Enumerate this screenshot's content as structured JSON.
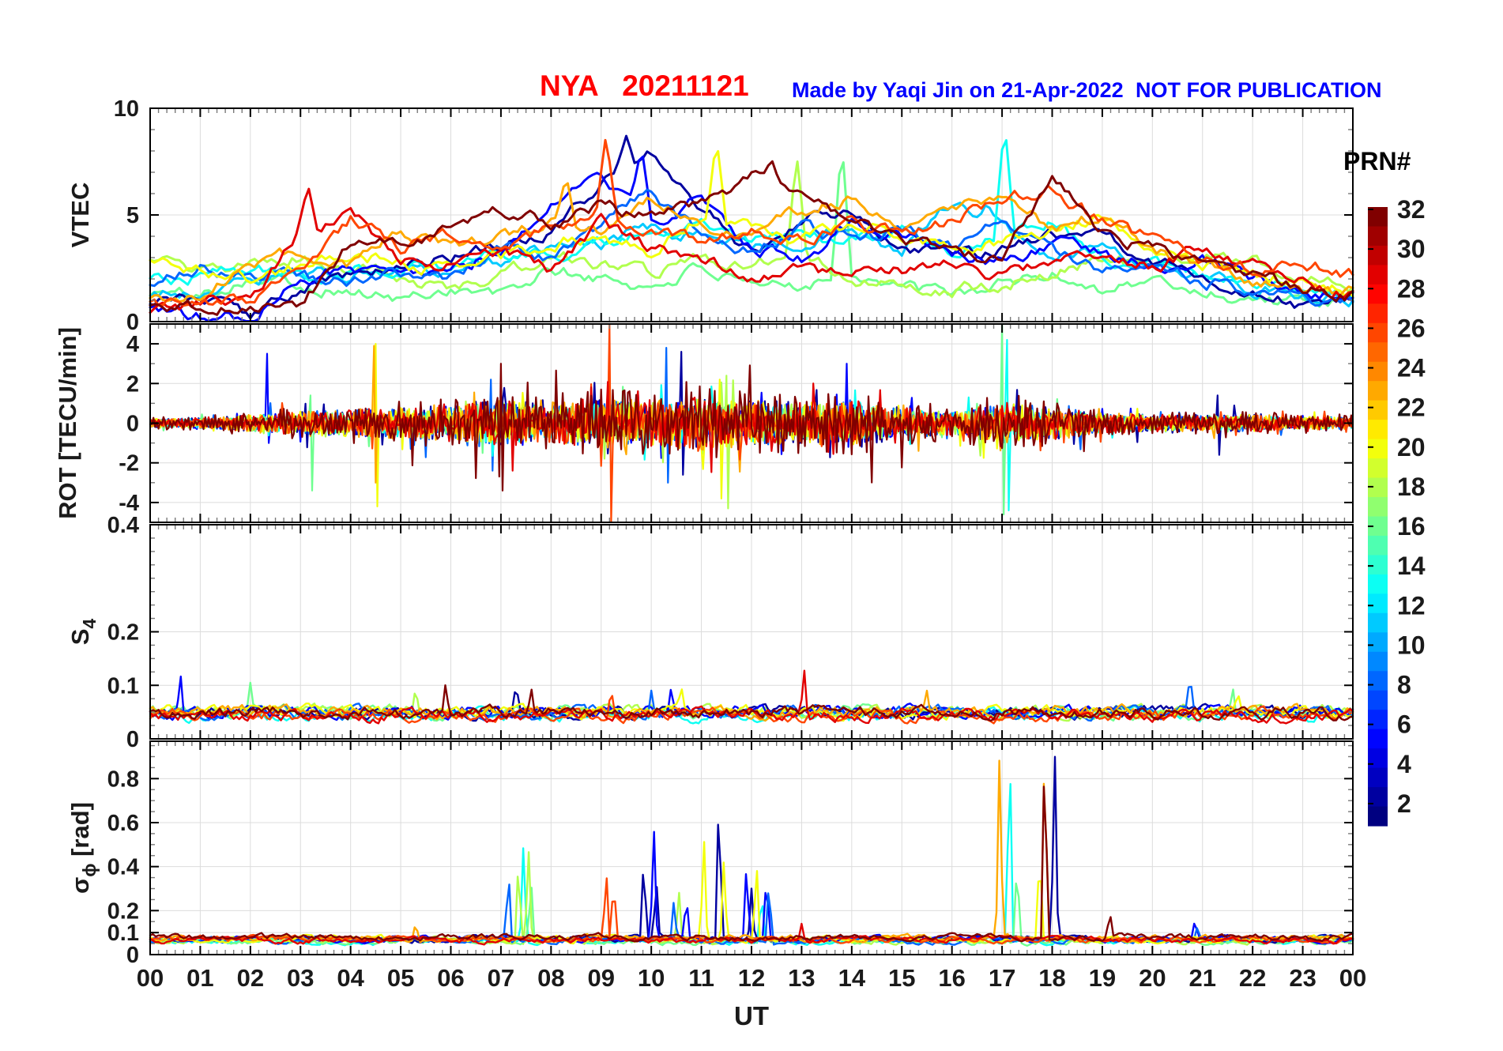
{
  "header": {
    "title": "NYA   20211121",
    "credit": "Made by Yaqi Jin on 21-Apr-2022",
    "watermark": "NOT FOR PUBLICATION",
    "title_color": "#ff0000",
    "note_color": "#0000ff"
  },
  "axes": {
    "xlabel": "UT",
    "xlim": [
      0,
      24
    ],
    "xtick_labels": [
      "00",
      "01",
      "02",
      "03",
      "04",
      "05",
      "06",
      "07",
      "08",
      "09",
      "10",
      "11",
      "12",
      "13",
      "14",
      "15",
      "16",
      "17",
      "18",
      "19",
      "20",
      "21",
      "22",
      "23",
      "00"
    ],
    "grid": true
  },
  "colorbar": {
    "title": "PRN#",
    "colormap": "jet",
    "range": [
      1,
      32
    ],
    "ticks": [
      2,
      4,
      6,
      8,
      10,
      12,
      14,
      16,
      18,
      20,
      22,
      24,
      26,
      28,
      30,
      32
    ]
  },
  "chart_data": [
    {
      "type": "line",
      "name": "VTEC",
      "ylabel": "VTEC",
      "ylim": [
        0,
        10
      ],
      "yticks": [
        0,
        5,
        10
      ],
      "ytick_labels": [
        "0",
        "5",
        "10"
      ],
      "minor_y": 1,
      "x_step_hours": 1,
      "series": [
        {
          "prn": 16,
          "values": [
            1.4,
            1.2,
            2.2,
            1.8,
            1.4,
            1.0,
            1.6,
            1.2,
            2.4,
            2.0,
            1.6,
            2.6,
            1.4,
            1.8,
            2.4,
            1.6,
            1.2,
            1.8,
            2.2,
            1.6,
            1.9,
            1.4,
            1.1,
            0.9,
            0.8
          ],
          "spikes": [
            [
              13.8,
              8.5
            ]
          ]
        },
        {
          "prn": 18,
          "values": [
            2.8,
            2.2,
            2.6,
            3.0,
            2.4,
            2.0,
            1.6,
            2.2,
            3.2,
            2.6,
            2.2,
            3.0,
            2.6,
            3.4,
            2.0,
            1.6,
            1.4,
            1.8,
            2.4,
            3.0,
            2.6,
            3.2,
            2.8,
            2.0,
            1.6
          ],
          "spikes": [
            [
              12.9,
              7.9
            ]
          ]
        },
        {
          "prn": 11,
          "values": [
            1.2,
            1.6,
            1.9,
            2.4,
            2.2,
            2.6,
            2.4,
            2.8,
            3.2,
            3.6,
            4.5,
            4.0,
            3.4,
            3.8,
            4.4,
            3.3,
            5.5,
            4.6,
            3.0,
            3.4,
            2.6,
            2.0,
            1.6,
            1.2,
            1.0
          ],
          "spikes": [
            [
              16.7,
              5.6
            ]
          ]
        },
        {
          "prn": 13,
          "values": [
            1.8,
            2.1,
            2.4,
            2.0,
            2.3,
            2.6,
            2.5,
            3.4,
            3.0,
            3.8,
            4.2,
            4.6,
            3.6,
            4.2,
            3.8,
            4.4,
            3.4,
            4.0,
            4.6,
            3.0,
            2.6,
            2.2,
            1.8,
            1.4,
            1.2
          ],
          "spikes": [
            [
              17.05,
              9.4
            ]
          ]
        },
        {
          "prn": 2,
          "values": [
            1.0,
            0.9,
            0.3,
            1.6,
            2.2,
            2.6,
            3.0,
            3.8,
            4.3,
            6.5,
            7.8,
            5.5,
            3.2,
            4.8,
            5.2,
            3.6,
            3.0,
            3.4,
            4.2,
            3.8,
            3.0,
            2.2,
            1.2,
            0.8,
            1.0
          ],
          "spikes": [
            [
              9.5,
              8.7
            ]
          ]
        },
        {
          "prn": 5,
          "values": [
            0.8,
            0.2,
            0.15,
            2.0,
            2.6,
            2.4,
            2.8,
            3.2,
            5.5,
            6.8,
            4.5,
            5.8,
            3.5,
            3.0,
            4.6,
            4.0,
            3.3,
            2.8,
            3.6,
            3.2,
            2.6,
            3.0,
            2.0,
            1.4,
            1.2
          ],
          "spikes": [
            [
              9.8,
              8.2
            ]
          ]
        },
        {
          "prn": 8,
          "values": [
            1.5,
            2.6,
            2.3,
            2.1,
            1.8,
            2.2,
            2.0,
            3.5,
            3.0,
            4.4,
            6.2,
            4.0,
            3.4,
            4.4,
            3.8,
            4.2,
            3.6,
            5.0,
            3.2,
            2.4,
            2.8,
            2.0,
            1.5,
            1.0,
            0.9
          ],
          "spikes": []
        },
        {
          "prn": 20,
          "values": [
            2.9,
            2.4,
            2.0,
            2.6,
            3.2,
            2.8,
            2.4,
            3.0,
            3.6,
            4.2,
            3.0,
            5.0,
            4.4,
            3.8,
            4.6,
            4.0,
            3.4,
            3.8,
            4.4,
            5.0,
            3.6,
            2.8,
            2.2,
            1.8,
            1.5
          ],
          "spikes": [
            [
              11.3,
              8.6
            ]
          ]
        },
        {
          "prn": 23,
          "values": [
            0.9,
            1.3,
            2.5,
            3.3,
            2.8,
            4.3,
            3.6,
            4.0,
            4.6,
            4.2,
            5.6,
            4.8,
            4.0,
            5.2,
            5.8,
            4.6,
            5.4,
            6.0,
            4.4,
            5.0,
            3.4,
            2.6,
            2.0,
            1.6,
            1.3
          ],
          "spikes": [
            [
              8.3,
              6.8
            ]
          ]
        },
        {
          "prn": 29,
          "values": [
            0.6,
            0.8,
            1.0,
            4.2,
            5.3,
            3.0,
            2.6,
            3.2,
            2.4,
            4.6,
            3.4,
            2.8,
            2.2,
            2.6,
            2.0,
            2.4,
            2.8,
            2.2,
            2.6,
            3.0,
            2.6,
            3.4,
            2.6,
            1.8,
            1.4
          ],
          "spikes": [
            [
              3.15,
              6.4
            ]
          ]
        },
        {
          "prn": 26,
          "values": [
            0.7,
            0.9,
            1.1,
            2.6,
            4.8,
            3.4,
            4.2,
            3.8,
            4.4,
            5.0,
            4.2,
            3.6,
            4.4,
            3.8,
            4.6,
            4.0,
            4.8,
            5.6,
            6.2,
            4.6,
            3.8,
            3.0,
            2.4,
            2.8,
            2.2
          ],
          "spikes": [
            [
              9.1,
              8.8
            ]
          ]
        },
        {
          "prn": 32,
          "values": [
            0.7,
            0.6,
            0.7,
            0.8,
            3.6,
            3.9,
            4.4,
            5.2,
            4.6,
            5.4,
            4.8,
            5.6,
            6.8,
            6.2,
            4.4,
            4.0,
            3.2,
            2.8,
            6.9,
            4.2,
            3.4,
            2.6,
            2.0,
            1.6,
            1.2
          ],
          "spikes": [
            [
              12.4,
              7.6
            ]
          ]
        }
      ]
    },
    {
      "type": "line",
      "name": "ROT",
      "mode": "noise",
      "ylabel": "ROT [TECU/min]",
      "ylim": [
        -5,
        5
      ],
      "yticks": [
        -4,
        -2,
        0,
        2,
        4
      ],
      "ytick_labels": [
        "-4",
        "-2",
        "0",
        "2",
        "4"
      ],
      "minor_y": 1,
      "envelope_hourly": [
        0.25,
        0.3,
        0.5,
        0.7,
        0.8,
        0.9,
        1.1,
        1.3,
        1.2,
        1.4,
        1.3,
        1.5,
        1.3,
        1.2,
        1.3,
        0.9,
        0.7,
        1.2,
        1.0,
        0.6,
        0.5,
        0.45,
        0.5,
        0.4,
        0.35
      ],
      "series": [
        {
          "prn": 2,
          "scale": 0.9,
          "spikes": [
            [
              10.6,
              -2.6,
              3.6
            ],
            [
              21.3,
              -1.6,
              1.4
            ]
          ]
        },
        {
          "prn": 5,
          "scale": 0.8,
          "spikes": [
            [
              2.35,
              -1.0,
              3.5
            ],
            [
              13.9,
              -1.2,
              3.0
            ]
          ]
        },
        {
          "prn": 8,
          "scale": 0.85,
          "spikes": [
            [
              6.8,
              -2.4,
              2.2
            ],
            [
              10.3,
              -3.0,
              3.8
            ]
          ]
        },
        {
          "prn": 13,
          "scale": 0.75,
          "spikes": [
            [
              17.1,
              -4.4,
              4.2
            ]
          ]
        },
        {
          "prn": 16,
          "scale": 0.7,
          "spikes": [
            [
              3.2,
              -3.4,
              1.4
            ],
            [
              17.0,
              -4.6,
              5.2
            ]
          ]
        },
        {
          "prn": 18,
          "scale": 0.8,
          "spikes": [
            [
              11.5,
              -4.3,
              2.4
            ]
          ]
        },
        {
          "prn": 20,
          "scale": 0.85,
          "spikes": [
            [
              4.5,
              -4.2,
              4.0
            ],
            [
              11.35,
              -3.8,
              2.2
            ]
          ]
        },
        {
          "prn": 23,
          "scale": 0.9,
          "spikes": [
            [
              4.45,
              -3.0,
              3.9
            ]
          ]
        },
        {
          "prn": 26,
          "scale": 0.8,
          "spikes": [
            [
              9.15,
              -5.5,
              5.0
            ]
          ]
        },
        {
          "prn": 29,
          "scale": 0.9,
          "spikes": []
        },
        {
          "prn": 32,
          "scale": 1.25,
          "spikes": [
            [
              7.0,
              -3.4,
              3.0
            ]
          ]
        }
      ]
    },
    {
      "type": "line",
      "name": "S4",
      "ylabel": "S_4",
      "ylim": [
        0,
        0.4
      ],
      "yticks": [
        0,
        0.1,
        0.2,
        0.4
      ],
      "ytick_labels": [
        "0",
        "0.1",
        "0.2",
        "0.4"
      ],
      "minor_y": 0.025,
      "series": [
        {
          "prn": 13,
          "base": 0.045,
          "spikes": []
        },
        {
          "prn": 16,
          "base": 0.05,
          "spikes": [
            [
              2.0,
              0.105
            ],
            [
              21.6,
              0.1
            ]
          ]
        },
        {
          "prn": 18,
          "base": 0.05,
          "spikes": [
            [
              5.3,
              0.1
            ]
          ]
        },
        {
          "prn": 2,
          "base": 0.05,
          "spikes": [
            [
              7.3,
              0.1
            ]
          ]
        },
        {
          "prn": 5,
          "base": 0.05,
          "spikes": [
            [
              0.6,
              0.13
            ],
            [
              10.4,
              0.1
            ]
          ]
        },
        {
          "prn": 8,
          "base": 0.05,
          "spikes": [
            [
              10.0,
              0.09
            ],
            [
              20.75,
              0.12
            ]
          ]
        },
        {
          "prn": 20,
          "base": 0.05,
          "spikes": [
            [
              10.6,
              0.1
            ],
            [
              21.7,
              0.09
            ]
          ]
        },
        {
          "prn": 23,
          "base": 0.05,
          "spikes": [
            [
              15.5,
              0.09
            ]
          ]
        },
        {
          "prn": 26,
          "base": 0.045,
          "spikes": [
            [
              9.2,
              0.1
            ]
          ]
        },
        {
          "prn": 29,
          "base": 0.045,
          "spikes": [
            [
              13.05,
              0.135
            ]
          ]
        },
        {
          "prn": 32,
          "base": 0.05,
          "spikes": [
            [
              5.9,
              0.11
            ],
            [
              7.6,
              0.1
            ]
          ]
        }
      ]
    },
    {
      "type": "line",
      "name": "sigma_phi",
      "ylabel": "σ_ϕ [rad]",
      "ylim": [
        0,
        0.97
      ],
      "yticks": [
        0,
        0.1,
        0.2,
        0.4,
        0.6,
        0.8
      ],
      "ytick_labels": [
        "0",
        "0.1",
        "0.2",
        "0.4",
        "0.6",
        "0.8"
      ],
      "minor_y": 0.05,
      "series": [
        {
          "prn": 13,
          "base": 0.06,
          "spikes": [
            [
              7.45,
              0.52
            ],
            [
              12.2,
              0.3
            ],
            [
              17.15,
              1.0
            ]
          ]
        },
        {
          "prn": 16,
          "base": 0.06,
          "spikes": [
            [
              7.6,
              0.35
            ],
            [
              17.3,
              0.45
            ]
          ]
        },
        {
          "prn": 18,
          "base": 0.065,
          "spikes": [
            [
              7.35,
              0.45
            ],
            [
              7.55,
              0.5
            ],
            [
              10.55,
              0.3
            ]
          ]
        },
        {
          "prn": 2,
          "base": 0.07,
          "spikes": [
            [
              9.85,
              0.45
            ],
            [
              10.1,
              0.35
            ],
            [
              11.35,
              0.75
            ],
            [
              12.0,
              0.3
            ],
            [
              18.05,
              0.97
            ]
          ]
        },
        {
          "prn": 5,
          "base": 0.07,
          "spikes": [
            [
              10.05,
              0.6
            ],
            [
              10.7,
              0.28
            ],
            [
              11.9,
              0.42
            ],
            [
              12.3,
              0.38
            ],
            [
              20.85,
              0.16
            ]
          ]
        },
        {
          "prn": 8,
          "base": 0.065,
          "spikes": [
            [
              7.15,
              0.4
            ],
            [
              10.45,
              0.25
            ],
            [
              12.35,
              0.35
            ],
            [
              20.9,
              0.13
            ]
          ]
        },
        {
          "prn": 20,
          "base": 0.07,
          "spikes": [
            [
              11.05,
              0.55
            ],
            [
              11.45,
              0.45
            ],
            [
              12.1,
              0.44
            ],
            [
              17.75,
              0.5
            ]
          ]
        },
        {
          "prn": 23,
          "base": 0.075,
          "spikes": [
            [
              5.3,
              0.15
            ],
            [
              16.95,
              0.95
            ],
            [
              17.85,
              1.0
            ]
          ]
        },
        {
          "prn": 26,
          "base": 0.07,
          "spikes": [
            [
              9.1,
              0.4
            ],
            [
              9.25,
              0.35
            ]
          ]
        },
        {
          "prn": 29,
          "base": 0.065,
          "spikes": [
            [
              13.0,
              0.14
            ]
          ]
        },
        {
          "prn": 32,
          "base": 0.08,
          "spikes": [
            [
              17.85,
              0.98
            ],
            [
              19.15,
              0.2
            ]
          ]
        }
      ]
    }
  ]
}
